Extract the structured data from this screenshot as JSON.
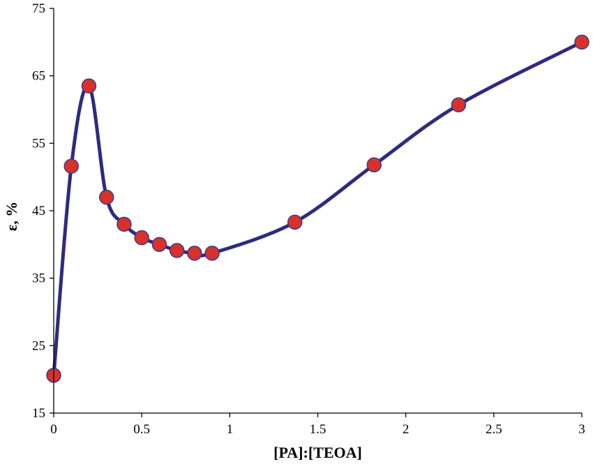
{
  "chart_data": {
    "type": "scatter",
    "title": "",
    "xlabel": "[PA]:[TEOA]",
    "ylabel": "ε, %",
    "xlim": [
      0,
      3
    ],
    "ylim": [
      15,
      75
    ],
    "xticks": [
      0,
      0.5,
      1,
      1.5,
      2,
      2.5,
      3
    ],
    "xtick_labels": [
      "0",
      "0.5",
      "1",
      "1.5",
      "2",
      "2.5",
      "3"
    ],
    "yticks": [
      15,
      25,
      35,
      45,
      55,
      65,
      75
    ],
    "ytick_labels": [
      "15",
      "25",
      "35",
      "45",
      "55",
      "65",
      "75"
    ],
    "grid": false,
    "legend": "none",
    "smooth_line": true,
    "series": [
      {
        "x": [
          0,
          0.1,
          0.2,
          0.3,
          0.4,
          0.5,
          0.6,
          0.7,
          0.8,
          0.9,
          1.37,
          1.82,
          2.3,
          3.0
        ],
        "y": [
          20.6,
          51.6,
          63.5,
          47.0,
          43.0,
          41.0,
          40.0,
          39.1,
          38.7,
          38.7,
          43.3,
          51.8,
          60.7,
          70.0
        ]
      }
    ],
    "colors": {
      "line": "#2e2b7f",
      "marker_fill": "#d8312b",
      "marker_edge": "#3b3a86",
      "axis": "#000000"
    }
  }
}
